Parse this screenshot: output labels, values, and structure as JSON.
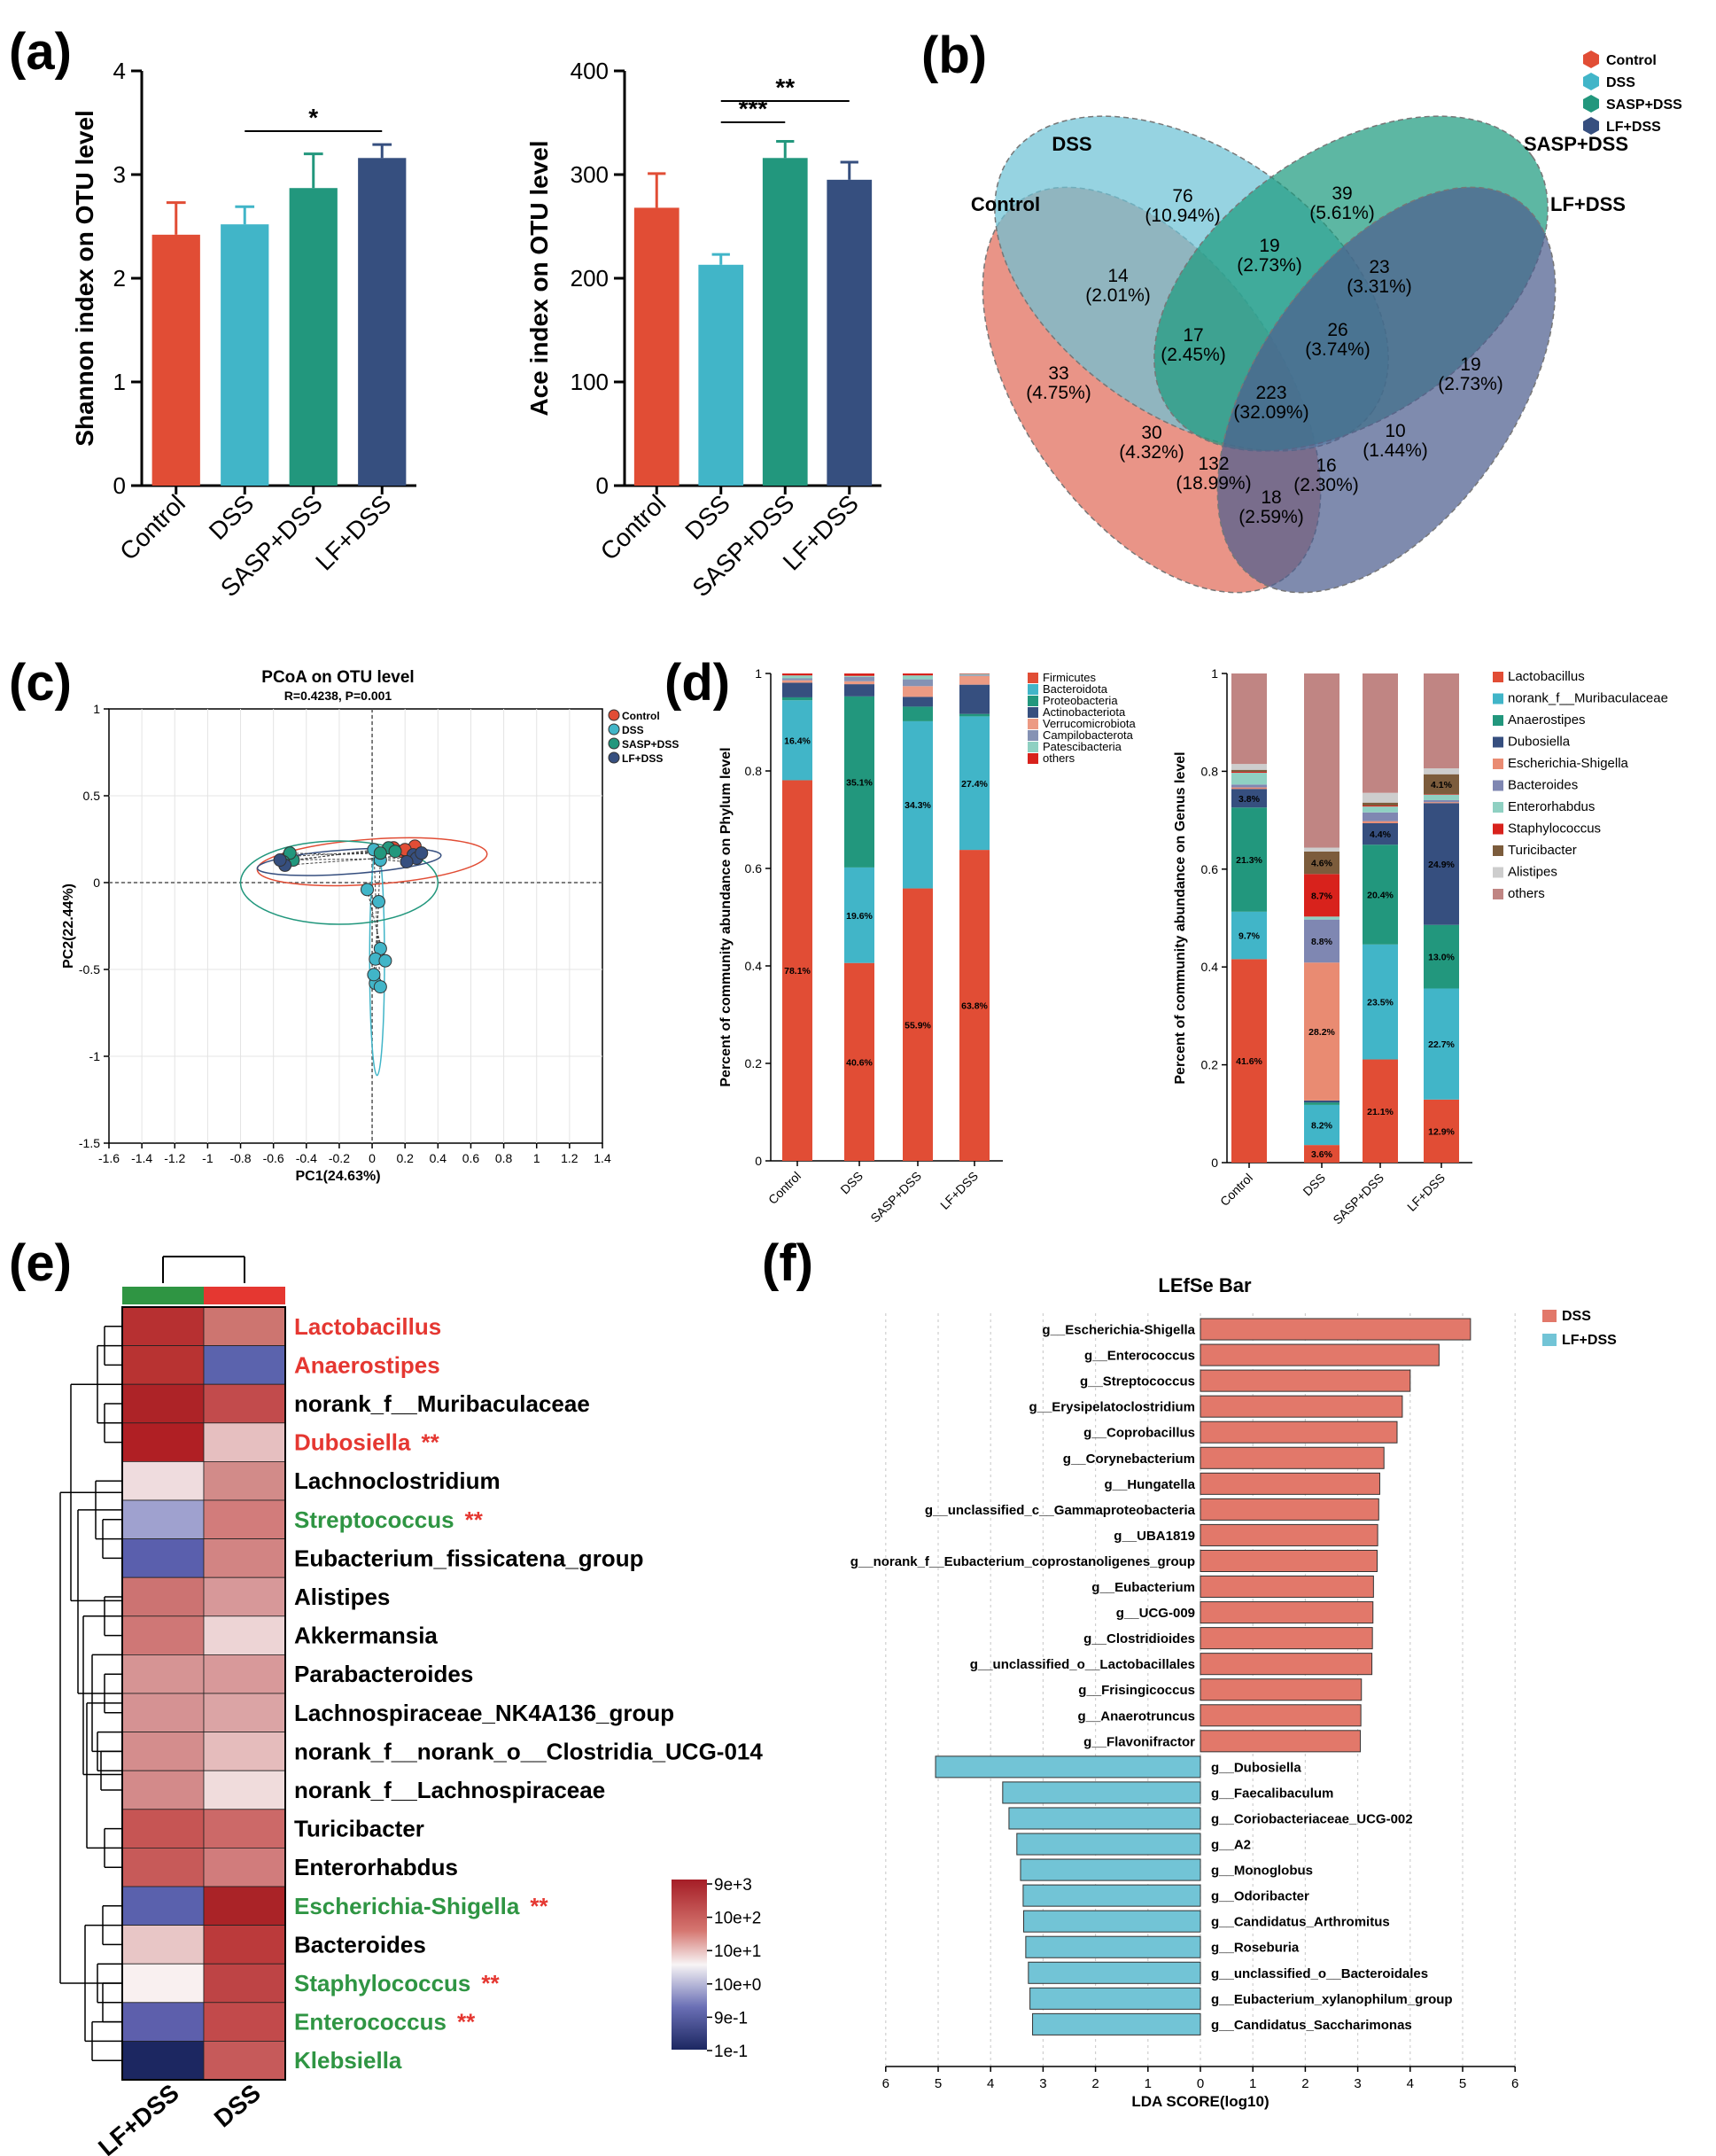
{
  "panel_labels": {
    "a": "(a)",
    "b": "(b)",
    "c": "(c)",
    "d": "(d)",
    "e": "(e)",
    "f": "(f)"
  },
  "colors": {
    "control": "#e14d35",
    "dss": "#41b5c8",
    "sasp": "#22977d",
    "lf": "#364f7f",
    "firmicutes": "#e14d35",
    "bacteroidota": "#41b5c8",
    "proteobacteria": "#22977d",
    "actinobacteriota": "#364f7f",
    "verrucomicrobiota": "#ec9a83",
    "campilobacterota": "#8592b4",
    "patescibacteria": "#8fd0c2",
    "others_phylum": "#d8221c",
    "lefse_dss": "#e2786a",
    "lefse_lf": "#72c4d6"
  },
  "chart_data": [
    {
      "id": "a1",
      "type": "bar",
      "ylabel": "Shannon index on OTU level",
      "categories": [
        "Control",
        "DSS",
        "SASP+DSS",
        "LF+DSS"
      ],
      "values": [
        2.42,
        2.52,
        2.87,
        3.16
      ],
      "errors": [
        0.31,
        0.17,
        0.33,
        0.13
      ],
      "ylim": [
        0,
        4
      ],
      "yticks": [
        "0",
        "1",
        "2",
        "3",
        "4"
      ],
      "significance": [
        {
          "from": 1,
          "to": 3,
          "label": "*"
        }
      ]
    },
    {
      "id": "a2",
      "type": "bar",
      "ylabel": "Ace index on OTU level",
      "categories": [
        "Control",
        "DSS",
        "SASP+DSS",
        "LF+DSS"
      ],
      "values": [
        268,
        213,
        316,
        295
      ],
      "errors": [
        33,
        10,
        16,
        17
      ],
      "ylim": [
        0,
        400
      ],
      "yticks": [
        "0",
        "100",
        "200",
        "300",
        "400"
      ],
      "significance": [
        {
          "from": 1,
          "to": 2,
          "label": "***"
        },
        {
          "from": 1,
          "to": 3,
          "label": "**"
        }
      ]
    },
    {
      "id": "b",
      "type": "venn",
      "sets": [
        "Control",
        "DSS",
        "SASP+DSS",
        "LF+DSS"
      ],
      "legend": [
        "Control",
        "DSS",
        "SASP+DSS",
        "LF+DSS"
      ],
      "regions": [
        {
          "count": "76",
          "pct": "(10.94%)"
        },
        {
          "count": "39",
          "pct": "(5.61%)"
        },
        {
          "count": "19",
          "pct": "(2.73%)"
        },
        {
          "count": "14",
          "pct": "(2.01%)"
        },
        {
          "count": "23",
          "pct": "(3.31%)"
        },
        {
          "count": "17",
          "pct": "(2.45%)"
        },
        {
          "count": "26",
          "pct": "(3.74%)"
        },
        {
          "count": "33",
          "pct": "(4.75%)"
        },
        {
          "count": "19",
          "pct": "(2.73%)"
        },
        {
          "count": "223",
          "pct": "(32.09%)"
        },
        {
          "count": "30",
          "pct": "(4.32%)"
        },
        {
          "count": "10",
          "pct": "(1.44%)"
        },
        {
          "count": "132",
          "pct": "(18.99%)"
        },
        {
          "count": "16",
          "pct": "(2.30%)"
        },
        {
          "count": "18",
          "pct": "(2.59%)"
        }
      ]
    },
    {
      "id": "c",
      "type": "scatter",
      "title": "PCoA on OTU level",
      "subtitle": "R=0.4238, P=0.001",
      "xlabel": "PC1(24.63%)",
      "ylabel": "PC2(22.44%)",
      "xlim": [
        -1.6,
        1.4
      ],
      "ylim": [
        -1.5,
        1
      ],
      "xticks": [
        "-1.6",
        "-1.4",
        "-1.2",
        "-1",
        "-0.8",
        "-0.6",
        "-0.4",
        "-0.2",
        "0",
        "0.2",
        "0.4",
        "0.6",
        "0.8",
        "1",
        "1.2",
        "1.4"
      ],
      "yticks": [
        "1",
        "0.5",
        "0",
        "-0.5",
        "-1",
        "-1.5"
      ],
      "legend": [
        "Control",
        "DSS",
        "SASP+DSS",
        "LF+DSS"
      ],
      "groups": [
        {
          "name": "Control",
          "points": [
            [
              0.26,
              0.21
            ],
            [
              0.18,
              0.18
            ],
            [
              0.22,
              0.16
            ],
            [
              -0.51,
              0.15
            ],
            [
              0.13,
              0.2
            ],
            [
              0.2,
              0.19
            ]
          ]
        },
        {
          "name": "DSS",
          "points": [
            [
              0.01,
              0.19
            ],
            [
              0.05,
              0.13
            ],
            [
              -0.03,
              -0.04
            ],
            [
              0.04,
              -0.11
            ],
            [
              0.05,
              -0.38
            ],
            [
              0.02,
              -0.44
            ],
            [
              0.08,
              -0.45
            ],
            [
              0.02,
              -0.58
            ],
            [
              0.05,
              -0.6
            ],
            [
              0.01,
              -0.53
            ]
          ]
        },
        {
          "name": "SASP+DSS",
          "points": [
            [
              -0.48,
              0.13
            ],
            [
              -0.5,
              0.17
            ],
            [
              0.1,
              0.2
            ],
            [
              0.14,
              0.18
            ],
            [
              0.05,
              0.17
            ],
            [
              -0.54,
              0.12
            ]
          ]
        },
        {
          "name": "LF+DSS",
          "points": [
            [
              -0.53,
              0.1
            ],
            [
              -0.56,
              0.13
            ],
            [
              0.25,
              0.16
            ],
            [
              0.27,
              0.14
            ],
            [
              0.3,
              0.17
            ],
            [
              0.21,
              0.12
            ]
          ]
        }
      ]
    },
    {
      "id": "d1",
      "type": "stacked-bar",
      "ylabel": "Percent of community abundance on Phylum level",
      "categories": [
        "Control",
        "DSS",
        "SASP+DSS",
        "LF+DSS"
      ],
      "yticks": [
        "0",
        "0.2",
        "0.4",
        "0.6",
        "0.8",
        "1"
      ],
      "series": [
        {
          "name": "Firmicutes",
          "values": [
            0.781,
            0.406,
            0.559,
            0.638
          ],
          "labels": [
            "78.1%",
            "40.6%",
            "55.9%",
            "63.8%"
          ]
        },
        {
          "name": "Bacteroidota",
          "values": [
            0.164,
            0.196,
            0.343,
            0.274
          ],
          "labels": [
            "16.4%",
            "19.6%",
            "34.3%",
            "27.4%"
          ]
        },
        {
          "name": "Proteobacteria",
          "values": [
            0.006,
            0.351,
            0.03,
            0.005
          ],
          "labels": [
            "",
            "35.1%",
            "",
            ""
          ]
        },
        {
          "name": "Actinobacteriota",
          "values": [
            0.03,
            0.025,
            0.02,
            0.06
          ],
          "labels": [
            "",
            "",
            "",
            ""
          ]
        },
        {
          "name": "Verrucomicrobiota",
          "values": [
            0.005,
            0.006,
            0.022,
            0.018
          ],
          "labels": [
            "",
            "",
            "",
            ""
          ]
        },
        {
          "name": "Campilobacterota",
          "values": [
            0.004,
            0.009,
            0.014,
            0.002
          ],
          "labels": [
            "",
            "",
            "",
            ""
          ]
        },
        {
          "name": "Patescibacteria",
          "values": [
            0.006,
            0.002,
            0.008,
            0.002
          ],
          "labels": [
            "",
            "",
            "",
            ""
          ]
        },
        {
          "name": "others",
          "values": [
            0.004,
            0.005,
            0.004,
            0.001
          ],
          "labels": [
            "",
            "",
            "",
            ""
          ]
        }
      ]
    },
    {
      "id": "d2",
      "type": "stacked-bar",
      "ylabel": "Percent of community abundance on Genus level",
      "categories": [
        "Control",
        "DSS",
        "SASP+DSS",
        "LF+DSS"
      ],
      "yticks": [
        "0",
        "0.2",
        "0.4",
        "0.6",
        "0.8",
        "1"
      ],
      "series": [
        {
          "name": "Lactobacillus",
          "values": [
            0.416,
            0.036,
            0.211,
            0.129
          ],
          "labels": [
            "41.6%",
            "3.6%",
            "21.1%",
            "12.9%"
          ]
        },
        {
          "name": "norank_f__Muribaculaceae",
          "values": [
            0.097,
            0.082,
            0.235,
            0.227
          ],
          "labels": [
            "9.7%",
            "8.2%",
            "23.5%",
            "22.7%"
          ]
        },
        {
          "name": "Anaerostipes",
          "values": [
            0.213,
            0.005,
            0.204,
            0.13
          ],
          "labels": [
            "21.3%",
            "",
            "20.4%",
            "13.0%"
          ]
        },
        {
          "name": "Dubosiella",
          "values": [
            0.038,
            0.004,
            0.044,
            0.249
          ],
          "labels": [
            "3.8%",
            "",
            "4.4%",
            "24.9%"
          ]
        },
        {
          "name": "Escherichia-Shigella",
          "values": [
            0.003,
            0.282,
            0.004,
            0.002
          ],
          "labels": [
            "",
            "28.2%",
            "",
            ""
          ]
        },
        {
          "name": "Bacteroides",
          "values": [
            0.006,
            0.088,
            0.018,
            0.004
          ],
          "labels": [
            "",
            "8.8%",
            "",
            ""
          ]
        },
        {
          "name": "Enterorhabdus",
          "values": [
            0.024,
            0.006,
            0.012,
            0.011
          ],
          "labels": [
            "",
            "",
            "",
            ""
          ]
        },
        {
          "name": "Staphylococcus",
          "values": [
            0.002,
            0.087,
            0.002,
            0.001
          ],
          "labels": [
            "",
            "8.7%",
            "",
            ""
          ]
        },
        {
          "name": "Turicibacter",
          "values": [
            0.004,
            0.046,
            0.006,
            0.041
          ],
          "labels": [
            "",
            "4.6%",
            "",
            "4.1%"
          ]
        },
        {
          "name": "Alistipes",
          "values": [
            0.012,
            0.008,
            0.02,
            0.012
          ],
          "labels": [
            "",
            "",
            "",
            ""
          ]
        },
        {
          "name": "others",
          "values": [
            0.185,
            0.356,
            0.244,
            0.194
          ],
          "labels": [
            "",
            "",
            "",
            ""
          ]
        }
      ]
    },
    {
      "id": "e",
      "type": "heatmap",
      "columns": [
        "LF+DSS",
        "DSS"
      ],
      "column_colors": [
        "#2f9543",
        "#e53731"
      ],
      "legend_labels": [
        "9e+3",
        "10e+2",
        "10e+1",
        "10e+0",
        "9e-1",
        "1e-1"
      ],
      "rows": [
        {
          "name": "Lactobacillus",
          "color": "#e53731",
          "stars": "",
          "cells": [
            "#b73031",
            "#cd7570"
          ]
        },
        {
          "name": "Anaerostipes",
          "color": "#e53731",
          "stars": "",
          "cells": [
            "#b83332",
            "#5b63ad"
          ]
        },
        {
          "name": "norank_f__Muribaculaceae",
          "color": "#000000",
          "stars": "",
          "cells": [
            "#ad2327",
            "#c24b4c"
          ]
        },
        {
          "name": "Dubosiella",
          "color": "#e53731",
          "stars": "**",
          "cells": [
            "#b01f24",
            "#e6bfc0"
          ]
        },
        {
          "name": "Lachnoclostridium",
          "color": "#000000",
          "stars": "",
          "cells": [
            "#efdcde",
            "#d28b89"
          ]
        },
        {
          "name": "Streptococcus",
          "color": "#2f9543",
          "stars": "**",
          "cells": [
            "#9fa1cf",
            "#d27c7b"
          ]
        },
        {
          "name": "Eubacterium_fissicatena_group",
          "color": "#000000",
          "stars": "",
          "cells": [
            "#5a5fad",
            "#d28483"
          ]
        },
        {
          "name": "Alistipes",
          "color": "#000000",
          "stars": "",
          "cells": [
            "#cc7372",
            "#d79899"
          ]
        },
        {
          "name": "Akkermansia",
          "color": "#000000",
          "stars": "",
          "cells": [
            "#cf7776",
            "#edd4d5"
          ]
        },
        {
          "name": "Parabacteroides",
          "color": "#000000",
          "stars": "",
          "cells": [
            "#d69494",
            "#d8999a"
          ]
        },
        {
          "name": "Lachnospiraceae_NK4A136_group",
          "color": "#000000",
          "stars": "",
          "cells": [
            "#d59293",
            "#dba4a5"
          ]
        },
        {
          "name": "norank_f__norank_o__Clostridia_UCG-014",
          "color": "#000000",
          "stars": "",
          "cells": [
            "#d48d8d",
            "#e5bcbc"
          ]
        },
        {
          "name": "norank_f__Lachnospiraceae",
          "color": "#000000",
          "stars": "",
          "cells": [
            "#d38a8a",
            "#f0dcdc"
          ]
        },
        {
          "name": "Turicibacter",
          "color": "#000000",
          "stars": "",
          "cells": [
            "#c65554",
            "#cc6968"
          ]
        },
        {
          "name": "Enterorhabdus",
          "color": "#000000",
          "stars": "",
          "cells": [
            "#c75a59",
            "#d17c7c"
          ]
        },
        {
          "name": "Escherichia-Shigella",
          "color": "#2f9543",
          "stars": "**",
          "cells": [
            "#5a61ad",
            "#aa2327"
          ]
        },
        {
          "name": "Bacteroides",
          "color": "#000000",
          "stars": "",
          "cells": [
            "#e8c6c6",
            "#bb3a3b"
          ]
        },
        {
          "name": "Staphylococcus",
          "color": "#2f9543",
          "stars": "**",
          "cells": [
            "#f9f0f0",
            "#be4445"
          ]
        },
        {
          "name": "Enterococcus",
          "color": "#2f9543",
          "stars": "**",
          "cells": [
            "#5d5fac",
            "#c24a4b"
          ]
        },
        {
          "name": "Klebsiella",
          "color": "#2f9543",
          "stars": "",
          "cells": [
            "#1c2761",
            "#c65a5a"
          ]
        }
      ]
    },
    {
      "id": "f",
      "type": "bar",
      "title": "LEfSe Bar",
      "xlabel": "LDA SCORE(log10)",
      "xticks": [
        "6",
        "5",
        "4",
        "3",
        "2",
        "1",
        "0",
        "1",
        "2",
        "3",
        "4",
        "5",
        "6"
      ],
      "legend": [
        "DSS",
        "LF+DSS"
      ],
      "bars": [
        {
          "name": "g__Escherichia-Shigella",
          "group": "DSS",
          "value": 5.15
        },
        {
          "name": "g__Enterococcus",
          "group": "DSS",
          "value": 4.55
        },
        {
          "name": "g__Streptococcus",
          "group": "DSS",
          "value": 4.0
        },
        {
          "name": "g__Erysipelatoclostridium",
          "group": "DSS",
          "value": 3.85
        },
        {
          "name": "g__Coprobacillus",
          "group": "DSS",
          "value": 3.75
        },
        {
          "name": "g__Corynebacterium",
          "group": "DSS",
          "value": 3.5
        },
        {
          "name": "g__Hungatella",
          "group": "DSS",
          "value": 3.42
        },
        {
          "name": "g__unclassified_c__Gammaproteobacteria",
          "group": "DSS",
          "value": 3.4
        },
        {
          "name": "g__UBA1819",
          "group": "DSS",
          "value": 3.38
        },
        {
          "name": "g__norank_f__Eubacterium_coprostanoligenes_group",
          "group": "DSS",
          "value": 3.37
        },
        {
          "name": "g__Eubacterium",
          "group": "DSS",
          "value": 3.3
        },
        {
          "name": "g__UCG-009",
          "group": "DSS",
          "value": 3.29
        },
        {
          "name": "g__Clostridioides",
          "group": "DSS",
          "value": 3.28
        },
        {
          "name": "g__unclassified_o__Lactobacillales",
          "group": "DSS",
          "value": 3.27
        },
        {
          "name": "g__Frisingicoccus",
          "group": "DSS",
          "value": 3.07
        },
        {
          "name": "g__Anaerotruncus",
          "group": "DSS",
          "value": 3.06
        },
        {
          "name": "g__Flavonifractor",
          "group": "DSS",
          "value": 3.05
        },
        {
          "name": "g__Dubosiella",
          "group": "LF+DSS",
          "value": 5.05
        },
        {
          "name": "g__Faecalibaculum",
          "group": "LF+DSS",
          "value": 3.77
        },
        {
          "name": "g__Coriobacteriaceae_UCG-002",
          "group": "LF+DSS",
          "value": 3.65
        },
        {
          "name": "g__A2",
          "group": "LF+DSS",
          "value": 3.5
        },
        {
          "name": "g__Monoglobus",
          "group": "LF+DSS",
          "value": 3.43
        },
        {
          "name": "g__Odoribacter",
          "group": "LF+DSS",
          "value": 3.38
        },
        {
          "name": "g__Candidatus_Arthromitus",
          "group": "LF+DSS",
          "value": 3.37
        },
        {
          "name": "g__Roseburia",
          "group": "LF+DSS",
          "value": 3.33
        },
        {
          "name": "g__unclassified_o__Bacteroidales",
          "group": "LF+DSS",
          "value": 3.28
        },
        {
          "name": "g__Eubacterium_xylanophilum_group",
          "group": "LF+DSS",
          "value": 3.25
        },
        {
          "name": "g__Candidatus_Saccharimonas",
          "group": "LF+DSS",
          "value": 3.2
        }
      ]
    }
  ]
}
